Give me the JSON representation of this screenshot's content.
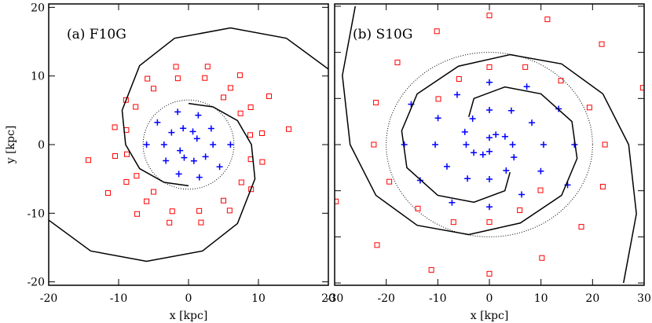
{
  "chart_data": [
    {
      "type": "scatter",
      "title": "(a) F10G",
      "xlabel": "x [kpc]",
      "ylabel": "y [kpc]",
      "xlim": [
        -20,
        20
      ],
      "ylim": [
        -20.5,
        20.5
      ],
      "xticks": [
        -20,
        -10,
        0,
        10,
        20
      ],
      "yticks": [
        -20,
        -10,
        0,
        10,
        20
      ],
      "circle_radius": 6.5,
      "series": [
        {
          "marker": "square",
          "color": "#ff0000",
          "x": [
            5.0,
            7.43,
            8.82,
            8.89,
            7.56,
            5.0,
            1.53,
            -2.33,
            -6.0,
            -8.89,
            -10.5,
            -10.55,
            -8.95,
            -5.88,
            -1.79,
            2.73,
            7.35,
            11.52,
            14.33
          ],
          "y": [
            6.88,
            4.55,
            1.4,
            -2.13,
            -5.5,
            -8.16,
            -9.66,
            -9.71,
            -8.26,
            -5.44,
            -1.66,
            2.53,
            6.5,
            9.61,
            11.35,
            11.37,
            10.11,
            7.05,
            2.26
          ]
        },
        {
          "marker": "square",
          "color": "#ff0000",
          "x": [
            -5.0,
            -7.43,
            -8.82,
            -8.89,
            -7.56,
            -5.0,
            -1.53,
            2.33,
            6.0,
            8.89,
            10.5,
            10.55,
            8.95,
            5.88,
            1.79,
            -2.73,
            -7.35,
            -11.52,
            -14.33
          ],
          "y": [
            -6.88,
            -4.55,
            -1.4,
            2.13,
            5.5,
            8.16,
            9.66,
            9.71,
            8.26,
            5.44,
            1.66,
            -2.53,
            -6.5,
            -9.61,
            -11.35,
            -11.37,
            -10.11,
            -7.05,
            -2.26
          ]
        },
        {
          "marker": "plus",
          "color": "#0000ff",
          "x": [
            -6,
            -4.45,
            -1.55,
            1.39,
            3.24,
            3.5,
            2.43,
            0.77,
            -0.62,
            -1.21
          ],
          "y": [
            0,
            3.23,
            4.76,
            4.28,
            2.35,
            0,
            -1.76,
            -2.38,
            -1.9,
            -0.88
          ]
        },
        {
          "marker": "plus",
          "color": "#0000ff",
          "x": [
            6,
            4.45,
            1.55,
            -1.39,
            -3.24,
            -3.5,
            -2.43,
            -0.77,
            0.62,
            1.21
          ],
          "y": [
            0,
            -3.23,
            -4.76,
            -4.28,
            -2.35,
            0,
            1.76,
            2.38,
            1.9,
            0.88
          ]
        },
        {
          "marker": "line",
          "color": "#000000",
          "x": [
            20,
            14,
            6,
            -2,
            -7,
            -9.5,
            -9,
            -7,
            -3.5,
            0
          ],
          "y": [
            11,
            15.5,
            17,
            15.5,
            11.5,
            5,
            0,
            -3.5,
            -5.5,
            -6
          ]
        },
        {
          "marker": "line",
          "color": "#000000",
          "x": [
            -20,
            -14,
            -6,
            2,
            7,
            9.5,
            9,
            7,
            3.5,
            0
          ],
          "y": [
            -11,
            -15.5,
            -17,
            -15.5,
            -11.5,
            -5,
            0,
            3.5,
            5.5,
            6
          ]
        }
      ]
    },
    {
      "type": "scatter",
      "title": "(b) S10G",
      "xlabel": "x [kpc]",
      "xlim": [
        -30,
        30
      ],
      "ylim": [
        -30.5,
        30.5
      ],
      "xticks": [
        -30,
        -20,
        -10,
        0,
        10,
        20,
        30
      ],
      "yticks": [
        -30,
        -20,
        -10,
        0,
        10,
        20,
        30
      ],
      "circle_radius": 20,
      "series": [
        {
          "marker": "square",
          "color": "#ff0000",
          "x": [
            -9.9,
            -5.89,
            0,
            6.96,
            13.86,
            19.4,
            22.4,
            21.99,
            17.82,
            10.18,
            0,
            -11.25,
            -21.78,
            -29.75
          ],
          "y": [
            9.9,
            14.23,
            16.8,
            16.81,
            13.86,
            8.04,
            0,
            -9.11,
            -17.82,
            -24.58,
            -28,
            -27.16,
            -21.78,
            -12.32
          ]
        },
        {
          "marker": "square",
          "color": "#ff0000",
          "x": [
            9.9,
            5.89,
            0,
            -6.96,
            -13.86,
            -19.4,
            -22.4,
            -21.99,
            -17.82,
            -10.18,
            0,
            11.25,
            21.78,
            29.75
          ],
          "y": [
            -9.9,
            -14.23,
            -16.8,
            -16.81,
            -13.86,
            -8.04,
            0,
            9.11,
            17.82,
            24.58,
            28,
            27.16,
            21.78,
            12.32
          ]
        },
        {
          "marker": "plus",
          "color": "#0000ff",
          "x": [
            0,
            1.25,
            3.03,
            4.5,
            4.76,
            3.25,
            0,
            -4.25,
            -8.23,
            -10.5,
            -9.96,
            -6.25,
            0,
            7.25,
            13.42,
            16.5,
            15.16
          ],
          "y": [
            1.5,
            2.17,
            1.75,
            0,
            -2.75,
            -5.63,
            -7.5,
            -7.36,
            -4.75,
            0,
            5.75,
            10.83,
            13.5,
            12.56,
            7.75,
            0,
            -8.75
          ]
        },
        {
          "marker": "plus",
          "color": "#0000ff",
          "x": [
            0,
            -1.25,
            -3.03,
            -4.5,
            -4.76,
            -3.25,
            0,
            4.25,
            8.23,
            10.5,
            9.96,
            6.25,
            0,
            -7.25,
            -13.42,
            -16.5,
            -15.16
          ],
          "y": [
            -1.5,
            -2.17,
            -1.75,
            0,
            2.75,
            5.63,
            7.5,
            7.36,
            4.75,
            0,
            -5.75,
            -10.83,
            -13.5,
            -12.56,
            -7.75,
            0,
            8.75
          ]
        },
        {
          "marker": "line",
          "color": "#000000",
          "x": [
            -26,
            -28.5,
            -27,
            -22,
            -14,
            -4,
            6,
            14,
            17,
            16,
            10,
            3,
            -3,
            -4
          ],
          "y": [
            30,
            15,
            0,
            -11,
            -17.5,
            -19.5,
            -17,
            -11,
            -3,
            5,
            11,
            12.5,
            10,
            6
          ]
        },
        {
          "marker": "line",
          "color": "#000000",
          "x": [
            26,
            28.5,
            27,
            22,
            14,
            4,
            -6,
            -14,
            -17,
            -16,
            -10,
            -3,
            3,
            4
          ],
          "y": [
            -30,
            -15,
            0,
            11,
            17.5,
            19.5,
            17,
            11,
            3,
            -5,
            -11,
            -12.5,
            -10,
            -6
          ]
        }
      ]
    }
  ]
}
